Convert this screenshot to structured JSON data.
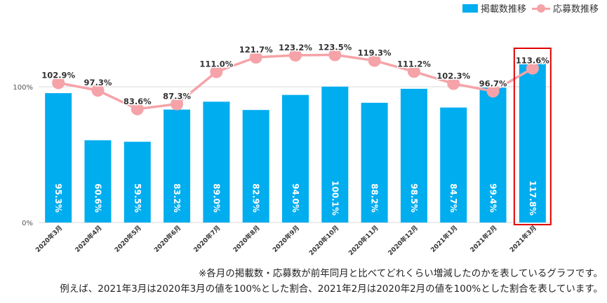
{
  "legend": {
    "bar_label": "掲載数推移",
    "line_label": "応募数推移"
  },
  "notes": {
    "line1": "※各月の掲載数・応募数が前年同月と比べてどれくらい増減したのかを表しているグラフです。",
    "line2": "例えば、2021年3月は2020年3月の値を100%とした割合、2021年2月は2020年2月の値を100%とした割合を表しています。"
  },
  "colors": {
    "bar": "#00adef",
    "line": "#f5a3a8",
    "highlight": "#e00000",
    "grid": "#d9d9d9"
  },
  "chart_data": {
    "type": "bar",
    "categories": [
      "2020年3月",
      "2020年4月",
      "2020年5月",
      "2020年6月",
      "2020年7月",
      "2020年8月",
      "2020年9月",
      "2020年10月",
      "2020年11月",
      "2020年12月",
      "2021年1月",
      "2021年2月",
      "2021年3月"
    ],
    "series": [
      {
        "name": "掲載数推移",
        "type": "bar",
        "values": [
          95.3,
          60.6,
          59.5,
          83.2,
          89.0,
          82.9,
          94.0,
          100.1,
          88.2,
          98.5,
          84.7,
          99.4,
          117.8
        ],
        "labels": [
          "95.3%",
          "60.6%",
          "59.5%",
          "83.2%",
          "89.0%",
          "82.9%",
          "94.0%",
          "100.1%",
          "88.2%",
          "98.5%",
          "84.7%",
          "99.4%",
          "117.8%"
        ]
      },
      {
        "name": "応募数推移",
        "type": "line",
        "values": [
          102.9,
          97.3,
          83.6,
          87.3,
          111.0,
          121.7,
          123.2,
          123.5,
          119.3,
          111.2,
          102.3,
          96.7,
          113.6
        ],
        "labels": [
          "102.9%",
          "97.3%",
          "83.6%",
          "87.3%",
          "111.0%",
          "121.7%",
          "123.2%",
          "123.5%",
          "119.3%",
          "111.2%",
          "102.3%",
          "96.7%",
          "113.6%"
        ]
      }
    ],
    "ytick_labels": [
      "0%",
      "100%"
    ],
    "yticks": [
      0,
      100
    ],
    "ylim": [
      0,
      130
    ],
    "grid": true,
    "legend_position": "top-right",
    "highlighted_category": "2021年3月"
  }
}
